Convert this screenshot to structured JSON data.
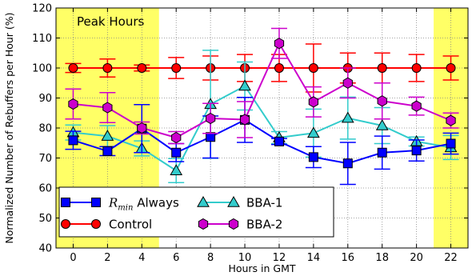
{
  "chart_data": {
    "type": "line",
    "xlabel": "Hours in GMT",
    "ylabel": "Normalized Number of Rebuffers per Hour (%)",
    "xlim": [
      -1,
      23
    ],
    "ylim": [
      40,
      120
    ],
    "xticks": [
      0,
      2,
      4,
      6,
      8,
      10,
      12,
      14,
      16,
      18,
      20,
      22
    ],
    "yticks": [
      40,
      50,
      60,
      70,
      80,
      90,
      100,
      110,
      120
    ],
    "grid": true,
    "legend_position": "bottom-left",
    "x": [
      0,
      2,
      4,
      6,
      8,
      10,
      12,
      14,
      16,
      18,
      20,
      22
    ],
    "shaded_regions": [
      {
        "label": "Peak Hours",
        "x_range": [
          -1,
          5
        ],
        "color": "#ffff66"
      },
      {
        "label": "",
        "x_range": [
          21,
          23
        ],
        "color": "#ffff66"
      }
    ],
    "series": [
      {
        "name": "R_min Always",
        "legend_math": "R",
        "legend_sub": "min",
        "legend_suffix": " Always",
        "color": "#0000ff",
        "marker": "square",
        "values": [
          75.9,
          72.3,
          79.8,
          71.8,
          77.0,
          82.7,
          75.5,
          70.3,
          68.2,
          71.8,
          72.5,
          74.8
        ],
        "err": [
          3,
          1.5,
          8,
          3,
          7,
          7.5,
          1,
          3.5,
          7,
          5.5,
          3.5,
          3.5
        ]
      },
      {
        "name": "Control",
        "color": "#ff0000",
        "marker": "circle",
        "values": [
          100,
          100,
          100,
          100,
          100,
          100,
          100,
          100,
          100,
          100,
          100,
          100
        ],
        "err": [
          1.5,
          3,
          1,
          3.5,
          4,
          4.5,
          4.5,
          8,
          5,
          5,
          4.5,
          4
        ]
      },
      {
        "name": "BBA-1",
        "color": "#33cccc",
        "marker": "triangle",
        "values": [
          78.5,
          77.3,
          73.2,
          65.8,
          87.9,
          94.0,
          76.8,
          78.3,
          83.3,
          80.8,
          75.5,
          73.5
        ],
        "err": [
          2.5,
          3.5,
          2.5,
          4,
          18,
          8,
          2,
          8,
          7,
          6,
          1.5,
          4
        ]
      },
      {
        "name": "BBA-2",
        "color": "#cc00cc",
        "marker": "hexagon",
        "values": [
          88.0,
          86.8,
          80.0,
          76.8,
          83.2,
          82.8,
          108.2,
          88.7,
          95.0,
          89.0,
          87.3,
          82.5
        ],
        "err": [
          5,
          5,
          2,
          2,
          5,
          6,
          5,
          5,
          5,
          6,
          3,
          2.5
        ]
      }
    ]
  }
}
